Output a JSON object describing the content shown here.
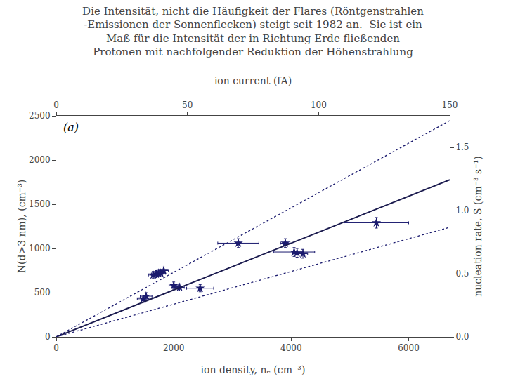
{
  "chart_data": {
    "type": "scatter",
    "title": "Die Intensität, nicht die Häufigkeit der Flares (Röntgenstrahlen\n-Emissionen der Sonnenflecken) steigt seit 1982 an.  Sie ist ein\nMaß für die Intensität der in Richtung Erde fließenden\nProtonen mit nachfolgender Reduktion der Höhenstrahlung",
    "xlabel": "ion density, nₑ (cm⁻³)",
    "x2label": "ion current (fA)",
    "ylabel": "N(d>3 nm), (cm⁻³)",
    "y2label": "nucleation rate, S (cm⁻³ s⁻¹)",
    "annotations": [
      {
        "text": "(a)"
      }
    ],
    "xlim": [
      0,
      6700
    ],
    "xticks": [
      0,
      2000,
      4000,
      6000
    ],
    "x2lim": [
      0,
      150
    ],
    "x2ticks": [
      0,
      50,
      100,
      150
    ],
    "ylim": [
      0,
      2500
    ],
    "yticks": [
      0,
      500,
      1000,
      1500,
      2000,
      2500
    ],
    "y2lim": [
      0,
      1.75
    ],
    "y2ticks": [
      {
        "value": 0,
        "label": "0.0"
      },
      0.5,
      {
        "value": 1.0,
        "label": "1.0"
      },
      1.5
    ],
    "grid": false,
    "series": [
      {
        "type": "scatter",
        "color": "#1a1a6e",
        "marker": "star",
        "x": [
          1480,
          1530,
          1650,
          1700,
          1740,
          1780,
          1830,
          2000,
          2100,
          2450,
          3100,
          3900,
          4050,
          4100,
          4200,
          5450
        ],
        "values": [
          430,
          460,
          700,
          710,
          720,
          720,
          750,
          580,
          560,
          550,
          1060,
          1060,
          960,
          950,
          940,
          1290
        ],
        "xerr": [
          100,
          100,
          80,
          80,
          80,
          80,
          80,
          80,
          80,
          230,
          350,
          80,
          350,
          80,
          80,
          550
        ],
        "yerr": [
          40,
          40,
          40,
          40,
          40,
          40,
          40,
          40,
          40,
          40,
          50,
          50,
          50,
          50,
          50,
          60
        ]
      },
      {
        "type": "line",
        "color": "#1a1a4e",
        "line_style": "solid",
        "x": [
          0,
          6700
        ],
        "values": [
          0,
          1775.5
        ]
      },
      {
        "type": "line",
        "color": "#1a1a6e",
        "line_style": "dotted",
        "x": [
          0,
          6700
        ],
        "values": [
          0,
          2445.5
        ]
      },
      {
        "type": "line",
        "color": "#1a1a6e",
        "line_style": "dotted",
        "x": [
          0,
          6700
        ],
        "values": [
          0,
          1239.5
        ]
      }
    ]
  }
}
